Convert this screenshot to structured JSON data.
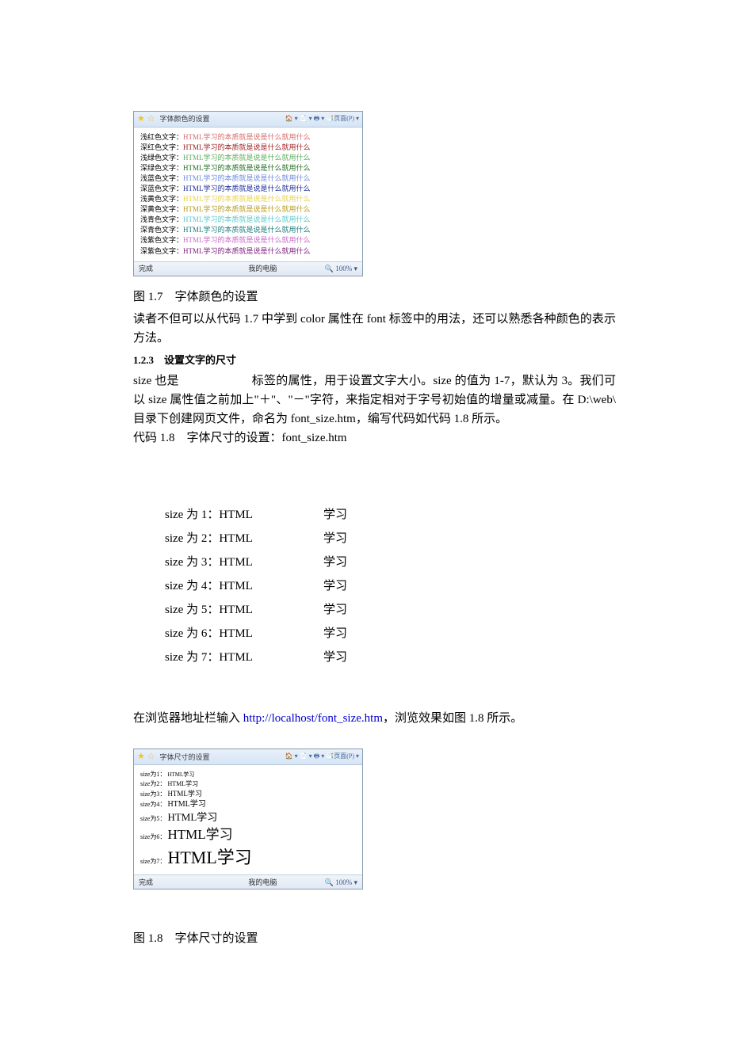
{
  "screenshot1": {
    "tab_star": "★ ☆",
    "tab_title": "字体颜色的设置",
    "toolbar": "🏠 ▾ 📄 ▾ 🖶 ▾ 📑页面(P) ▾",
    "status_done": "完成",
    "status_zone": "我的电脑",
    "status_zoom": "🔍 100% ▾",
    "sample_text": "HTML学习的本质就是说是什么就用什么",
    "lines": [
      {
        "label": "浅红色文字：",
        "color": "#d86a6a"
      },
      {
        "label": "深红色文字：",
        "color": "#a02020"
      },
      {
        "label": "浅绿色文字：",
        "color": "#5aae5a"
      },
      {
        "label": "深绿色文字：",
        "color": "#1f6d1f"
      },
      {
        "label": "浅蓝色文字：",
        "color": "#6a8ad8"
      },
      {
        "label": "深蓝色文字：",
        "color": "#1a2a9a"
      },
      {
        "label": "浅黄色文字：",
        "color": "#e6d24a"
      },
      {
        "label": "深黄色文字：",
        "color": "#b89a1a"
      },
      {
        "label": "浅青色文字：",
        "color": "#5ac8c8"
      },
      {
        "label": "深青色文字：",
        "color": "#1a7a7a"
      },
      {
        "label": "浅紫色文字：",
        "color": "#c86ac8"
      },
      {
        "label": "深紫色文字：",
        "color": "#7a1a7a"
      }
    ]
  },
  "caption17": "图 1.7　字体颜色的设置",
  "para1": "读者不但可以从代码 1.7 中学到 color 属性在 font 标签中的用法，还可以熟悉各种颜色的表示方法。",
  "heading123": "1.2.3　设置文字的尺寸",
  "para2a": "size 也是",
  "para2b": "标签的属性，用于设置文字大小。size 的值为 1-7，默认为 3。我们可以 size  属性值之前加上\"＋\"、\"－\"字符，来指定相对于字号初始值的增量或减量。在 D:\\web\\ 目录下创建网页文件，命名为 font_size.htm，编写代码如代码 1.8 所示。",
  "para3": "代码 1.8　字体尺寸的设置：font_size.htm",
  "size_list": {
    "rows": [
      {
        "left": "size 为 1：HTML",
        "right": "学习"
      },
      {
        "left": "size 为 2：HTML",
        "right": "学习"
      },
      {
        "left": "size 为 3：HTML",
        "right": "学习"
      },
      {
        "left": "size 为 4：HTML",
        "right": "学习"
      },
      {
        "left": "size 为 5：HTML",
        "right": "学习"
      },
      {
        "left": "size 为 6：HTML",
        "right": "学习"
      },
      {
        "left": "size 为 7：HTML",
        "right": "学习"
      }
    ]
  },
  "para4_pre": "在浏览器地址栏输入 ",
  "para4_url": "http://localhost/font_size.htm",
  "para4_post": "，浏览效果如图 1.8 所示。",
  "screenshot2": {
    "tab_star": "★ ☆",
    "tab_title": "字体尺寸的设置",
    "toolbar": "🏠 ▾ 📄 ▾ 🖶 ▾ 📑页面(P) ▾",
    "status_done": "完成",
    "status_zone": "我的电脑",
    "status_zoom": "🔍 100% ▾",
    "lines": [
      {
        "label": "size为1：",
        "text": "HTML学习",
        "cls": "fs1"
      },
      {
        "label": "size为2：",
        "text": "HTML学习",
        "cls": "fs2"
      },
      {
        "label": "size为3：",
        "text": "HTML学习",
        "cls": "fs3"
      },
      {
        "label": "size为4：",
        "text": "HTML学习",
        "cls": "fs4"
      },
      {
        "label": "size为5：",
        "text": "HTML学习",
        "cls": "fs5"
      },
      {
        "label": "size为6：",
        "text": "HTML学习",
        "cls": "fs6"
      },
      {
        "label": "size为7：",
        "text": "HTML学习",
        "cls": "fs7"
      }
    ]
  },
  "caption18": "图 1.8　字体尺寸的设置"
}
